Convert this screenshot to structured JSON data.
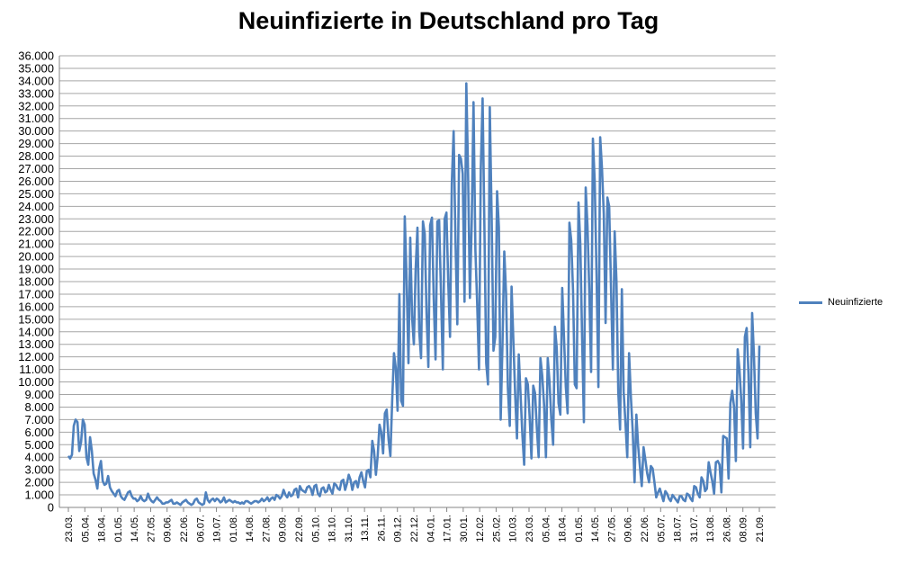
{
  "chart_data": {
    "type": "line",
    "title": "Neuinfizierte in Deutschland pro Tag",
    "xlabel": "",
    "ylabel": "",
    "ylim": [
      0,
      36000
    ],
    "ytick_step": 1000,
    "yticks": [
      "0",
      "1.000",
      "2.000",
      "3.000",
      "4.000",
      "5.000",
      "6.000",
      "7.000",
      "8.000",
      "9.000",
      "10.000",
      "11.000",
      "12.000",
      "13.000",
      "14.000",
      "15.000",
      "16.000",
      "17.000",
      "18.000",
      "19.000",
      "20.000",
      "21.000",
      "22.000",
      "23.000",
      "24.000",
      "25.000",
      "26.000",
      "27.000",
      "28.000",
      "29.000",
      "30.000",
      "31.000",
      "32.000",
      "33.000",
      "34.000",
      "35.000",
      "36.000"
    ],
    "xticks": [
      "23.03.",
      "05.04.",
      "18.04.",
      "01.05.",
      "14.05.",
      "27.05.",
      "09.06.",
      "22.06.",
      "06.07.",
      "19.07.",
      "01.08.",
      "14.08.",
      "27.08.",
      "09.09.",
      "22.09.",
      "05.10.",
      "18.10.",
      "31.10.",
      "13.11.",
      "26.11.",
      "09.12.",
      "22.12.",
      "04.01.",
      "17.01.",
      "30.01.",
      "12.02.",
      "25.02.",
      "10.03.",
      "23.03.",
      "05.04.",
      "18.04.",
      "01.05.",
      "14.05.",
      "27.05.",
      "09.06.",
      "22.06.",
      "05.07.",
      "18.07.",
      "31.07.",
      "13.08.",
      "26.08.",
      "08.09.",
      "21.09."
    ],
    "grid": true,
    "legend_position": "right",
    "line_color": "#4f81bd",
    "series": [
      {
        "name": "Neuinfizierte",
        "values_per_tick_interval_note_free": true,
        "daily": [
          4100,
          3900,
          4200,
          6500,
          7000,
          6800,
          4500,
          5200,
          7000,
          6600,
          4000,
          3400,
          5600,
          4500,
          2700,
          2200,
          1500,
          3100,
          3700,
          2100,
          1800,
          1900,
          2500,
          1600,
          1300,
          1100,
          900,
          1300,
          1400,
          900,
          700,
          600,
          900,
          1200,
          1300,
          900,
          700,
          700,
          500,
          600,
          900,
          600,
          500,
          600,
          1100,
          700,
          500,
          400,
          600,
          800,
          600,
          500,
          300,
          300,
          400,
          400,
          500,
          600,
          300,
          300,
          400,
          300,
          200,
          400,
          500,
          600,
          400,
          300,
          200,
          300,
          600,
          700,
          400,
          300,
          200,
          300,
          1200,
          600,
          400,
          600,
          700,
          500,
          700,
          600,
          400,
          500,
          800,
          400,
          500,
          600,
          500,
          400,
          500,
          400,
          400,
          300,
          400,
          300,
          500,
          500,
          400,
          300,
          400,
          500,
          500,
          400,
          500,
          700,
          500,
          600,
          800,
          500,
          700,
          800,
          600,
          1000,
          900,
          700,
          900,
          1400,
          1000,
          800,
          1200,
          900,
          1000,
          1400,
          1500,
          800,
          1700,
          1400,
          1300,
          1200,
          1600,
          1700,
          1500,
          1000,
          1700,
          1800,
          1100,
          900,
          1500,
          1600,
          1200,
          1300,
          1800,
          1400,
          1100,
          1900,
          1800,
          1500,
          1400,
          2100,
          2200,
          1400,
          1900,
          2600,
          2200,
          1400,
          2000,
          2100,
          1600,
          2400,
          2800,
          2100,
          1600,
          2900,
          3000,
          2400,
          5300,
          4500,
          2600,
          4100,
          6600,
          6000,
          4300,
          7500,
          7800,
          5400,
          4100,
          8500,
          12300,
          11100,
          7700,
          17000,
          8500,
          8100,
          23200,
          18000,
          11500,
          21500,
          15200,
          13000,
          19000,
          22300,
          14000,
          11900,
          22800,
          21800,
          15500,
          11200,
          22500,
          23100,
          16600,
          11800,
          22800,
          22900,
          17000,
          11000,
          23000,
          23500,
          18000,
          13600,
          25900,
          30000,
          21500,
          14600,
          28100,
          27800,
          26600,
          16400,
          33800,
          26500,
          16700,
          22700,
          32300,
          20500,
          16200,
          11000,
          27000,
          32600,
          22400,
          11500,
          9800,
          31900,
          22900,
          12500,
          13600,
          25200,
          22300,
          7000,
          13000,
          20400,
          17000,
          9500,
          6500,
          17600,
          13300,
          9000,
          5500,
          12200,
          9000,
          5800,
          3400,
          10300,
          9800,
          7200,
          3900,
          9700,
          9100,
          6300,
          4000,
          11900,
          10500,
          8100,
          4000,
          11900,
          10000,
          7000,
          5000,
          14400,
          12700,
          8300,
          7400,
          17500,
          13500,
          9600,
          7500,
          22700,
          21300,
          17300,
          9800,
          9500,
          24300,
          21000,
          13500,
          6800,
          25500,
          22400,
          17200,
          10800,
          29400,
          26000,
          18400,
          9600,
          29500,
          27000,
          23400,
          14700,
          24700,
          24000,
          17600,
          11000,
          22000,
          18000,
          9200,
          6200,
          17400,
          9200,
          6700,
          4000,
          12300,
          8700,
          6000,
          2000,
          7400,
          4900,
          3200,
          1700,
          4800,
          3800,
          2700,
          2000,
          3300,
          3100,
          2000,
          800,
          1200,
          1500,
          1000,
          500,
          1300,
          1100,
          700,
          500,
          1000,
          800,
          600,
          400,
          900,
          900,
          600,
          500,
          1100,
          1000,
          700,
          500,
          1700,
          1600,
          1100,
          800,
          2400,
          2100,
          1300,
          1500,
          3600,
          2800,
          2100,
          1100,
          3600,
          3700,
          3400,
          1200,
          5700,
          5600,
          5500,
          2300,
          8300,
          9300,
          8000,
          3700,
          12600,
          11000,
          8500,
          4700,
          13600,
          14300,
          10700,
          4800,
          15500,
          12100,
          7500,
          5500,
          12900
        ]
      }
    ]
  }
}
